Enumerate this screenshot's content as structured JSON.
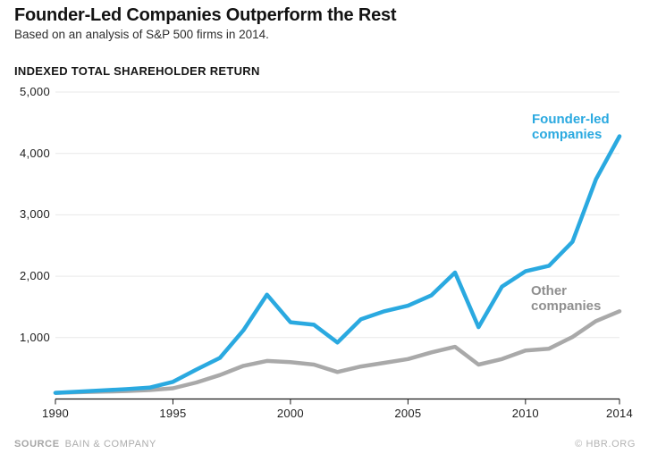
{
  "header": {
    "title": "Founder-Led Companies Outperform the Rest",
    "subtitle": "Based on an analysis of S&P 500 firms in 2014."
  },
  "axis_title": "INDEXED TOTAL SHAREHOLDER RETURN",
  "chart_data": {
    "type": "line",
    "title": "Founder-Led Companies Outperform the Rest",
    "subtitle": "Based on an analysis of S&P 500 firms in 2014.",
    "ylabel": "INDEXED TOTAL SHAREHOLDER RETURN",
    "xlabel": "",
    "grid": true,
    "legend_position": "inline-end-of-line-labels",
    "ylim": [
      0,
      5000
    ],
    "xlim": [
      1990,
      2014
    ],
    "x": [
      1990,
      1991,
      1992,
      1993,
      1994,
      1995,
      1996,
      1997,
      1998,
      1999,
      2000,
      2001,
      2002,
      2003,
      2004,
      2005,
      2006,
      2007,
      2008,
      2009,
      2010,
      2011,
      2012,
      2013,
      2014
    ],
    "series": [
      {
        "name": "Founder-led companies",
        "color": "#2aa9e0",
        "values": [
          100,
          120,
          140,
          160,
          185,
          280,
          480,
          670,
          1120,
          1700,
          1250,
          1210,
          920,
          1300,
          1430,
          1520,
          1690,
          2060,
          1170,
          1830,
          2080,
          2170,
          2560,
          3580,
          4280
        ]
      },
      {
        "name": "Other companies",
        "color": "#a9a9a9",
        "values": [
          100,
          110,
          120,
          130,
          145,
          175,
          270,
          390,
          540,
          620,
          600,
          560,
          440,
          530,
          590,
          650,
          760,
          850,
          560,
          650,
          790,
          820,
          1010,
          1270,
          1430
        ]
      }
    ],
    "x_ticks": [
      1990,
      1995,
      2000,
      2005,
      2010,
      2014
    ],
    "x_tick_labels": [
      "1990",
      "1995",
      "2000",
      "2005",
      "2010",
      "2014"
    ],
    "y_ticks": [
      1000,
      2000,
      3000,
      4000,
      5000
    ],
    "y_tick_labels": [
      "1,000",
      "2,000",
      "3,000",
      "4,000",
      "5,000"
    ]
  },
  "annotations": {
    "founder": {
      "line1": "Founder-led",
      "line2": "companies"
    },
    "other": {
      "line1": "Other",
      "line2": "companies"
    }
  },
  "footer": {
    "source_label": "SOURCE",
    "source_value": "BAIN & COMPANY",
    "credit": "© HBR.ORG"
  },
  "colors": {
    "founder_line": "#2aa9e0",
    "other_line": "#a9a9a9",
    "founder_label": "#2aa9e0",
    "other_label": "#8f8f8f",
    "grid": "#e9e9e9",
    "axis": "#1c1c1c",
    "title_text": "#131313",
    "tick_text": "#1d1d1d",
    "footer_text": "#acacac"
  }
}
